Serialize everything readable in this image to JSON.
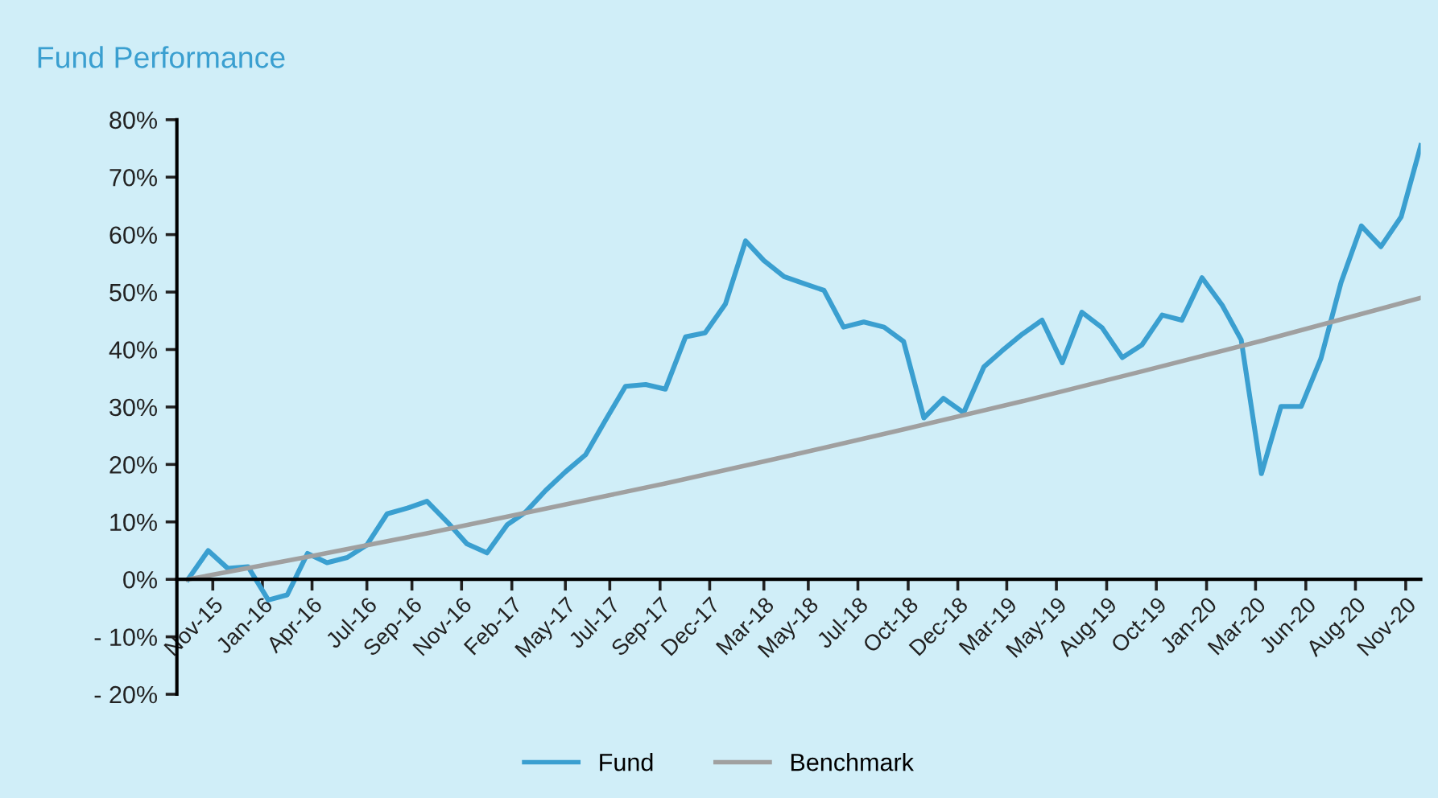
{
  "chart_data": {
    "type": "line",
    "title": "Fund Performance",
    "x": [
      "2015-10",
      "2015-11",
      "2015-12",
      "2016-01",
      "2016-02",
      "2016-03",
      "2016-04",
      "2016-05",
      "2016-06",
      "2016-07",
      "2016-08",
      "2016-09",
      "2016-10",
      "2016-11",
      "2016-12",
      "2017-01",
      "2017-02",
      "2017-03",
      "2017-04",
      "2017-05",
      "2017-06",
      "2017-07",
      "2017-08",
      "2017-09",
      "2017-10",
      "2017-11",
      "2017-12",
      "2018-01",
      "2018-02",
      "2018-03",
      "2018-04",
      "2018-05",
      "2018-06",
      "2018-07",
      "2018-08",
      "2018-09",
      "2018-10",
      "2018-11",
      "2018-12",
      "2019-01",
      "2019-02",
      "2019-03",
      "2019-04",
      "2019-05",
      "2019-06",
      "2019-07",
      "2019-08",
      "2019-09",
      "2019-10",
      "2019-11",
      "2019-12",
      "2020-01",
      "2020-02",
      "2020-03",
      "2020-04",
      "2020-05",
      "2020-06",
      "2020-07",
      "2020-08",
      "2020-09",
      "2020-10",
      "2020-11",
      "2020-12"
    ],
    "series": [
      {
        "name": "Fund",
        "color": "#3a9fd0",
        "values": [
          0,
          5.0,
          1.9,
          2.2,
          -3.6,
          -2.7,
          4.5,
          2.9,
          3.8,
          6.0,
          11.4,
          12.4,
          13.6,
          10.0,
          6.2,
          4.6,
          9.5,
          11.7,
          15.5,
          18.7,
          21.7,
          27.6,
          33.6,
          33.9,
          33.1,
          42.2,
          42.9,
          47.9,
          58.9,
          55.5,
          52.7,
          51.5,
          50.3,
          43.9,
          44.8,
          43.9,
          41.4,
          28.1,
          31.5,
          29.0,
          37.0,
          39.8,
          42.7,
          45.1,
          37.7,
          46.5,
          43.8,
          38.6,
          40.8,
          46.0,
          45.1,
          52.5,
          47.7,
          41.7,
          18.4,
          30.1,
          30.1,
          38.4,
          51.7,
          61.5,
          57.9,
          63.1,
          75.5
        ]
      },
      {
        "name": "Benchmark",
        "color": "#a0a0a0",
        "x": [
          "2015-10",
          "2016-04",
          "2016-10",
          "2017-04",
          "2017-10",
          "2018-04",
          "2018-10",
          "2019-04",
          "2019-10",
          "2020-04",
          "2020-10",
          "2020-12"
        ],
        "values": [
          0,
          3.9,
          8.0,
          12.3,
          16.7,
          21.3,
          26.1,
          31.0,
          36.2,
          41.5,
          47.1,
          49.0
        ]
      }
    ],
    "ylim": [
      -20,
      80
    ],
    "yticks": [
      {
        "value": -20,
        "label": "- 20%"
      },
      {
        "value": -10,
        "label": "- 10%"
      },
      {
        "value": 0,
        "label": "0%"
      },
      {
        "value": 10,
        "label": "10%"
      },
      {
        "value": 20,
        "label": "20%"
      },
      {
        "value": 30,
        "label": "30%"
      },
      {
        "value": 40,
        "label": "40%"
      },
      {
        "value": 50,
        "label": "50%"
      },
      {
        "value": 60,
        "label": "60%"
      },
      {
        "value": 70,
        "label": "70%"
      },
      {
        "value": 80,
        "label": "80%"
      }
    ],
    "xlim": [
      "2015-09-14",
      "2020-12-01"
    ],
    "xticks": [
      {
        "value": "2015-11-08",
        "label": "Nov-15"
      },
      {
        "value": "2016-01-23",
        "label": "Jan-16"
      },
      {
        "value": "2016-04-08",
        "label": "Apr-16"
      },
      {
        "value": "2016-07-01",
        "label": "Jul-16"
      },
      {
        "value": "2016-09-08",
        "label": "Sep-16"
      },
      {
        "value": "2016-11-23",
        "label": "Nov-16"
      },
      {
        "value": "2017-02-08",
        "label": "Feb-17"
      },
      {
        "value": "2017-05-01",
        "label": "May-17"
      },
      {
        "value": "2017-07-08",
        "label": "Jul-17"
      },
      {
        "value": "2017-09-23",
        "label": "Sep-17"
      },
      {
        "value": "2017-12-08",
        "label": "Dec-17"
      },
      {
        "value": "2018-03-01",
        "label": "Mar-18"
      },
      {
        "value": "2018-05-08",
        "label": "May-18"
      },
      {
        "value": "2018-07-23",
        "label": "Jul-18"
      },
      {
        "value": "2018-10-08",
        "label": "Oct-18"
      },
      {
        "value": "2018-12-23",
        "label": "Dec-18"
      },
      {
        "value": "2019-03-08",
        "label": "Mar-19"
      },
      {
        "value": "2019-05-23",
        "label": "May-19"
      },
      {
        "value": "2019-08-08",
        "label": "Aug-19"
      },
      {
        "value": "2019-10-23",
        "label": "Oct-19"
      },
      {
        "value": "2020-01-08",
        "label": "Jan-20"
      },
      {
        "value": "2020-03-23",
        "label": "Mar-20"
      },
      {
        "value": "2020-06-08",
        "label": "Jun-20"
      },
      {
        "value": "2020-08-23",
        "label": "Aug-20"
      },
      {
        "value": "2020-11-08",
        "label": "Nov-20"
      }
    ],
    "grid": false,
    "legend": "bottom",
    "marker": "none",
    "line_style": "solid"
  }
}
